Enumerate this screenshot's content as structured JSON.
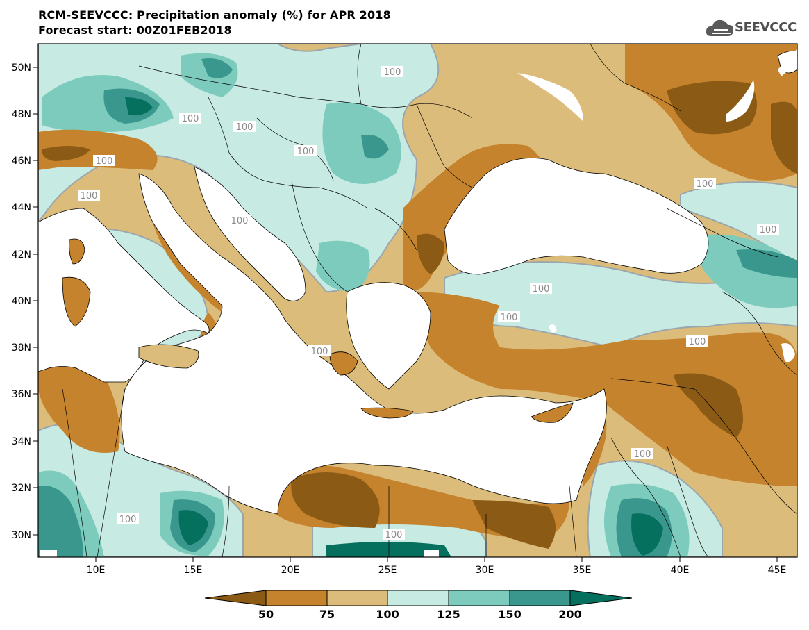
{
  "title": {
    "line1": "RCM-SEEVCCC: Precipitation anomaly (%) for APR 2018",
    "line2": "Forecast start: 00Z01FEB2018"
  },
  "logo": {
    "text": "SEEVCCC",
    "icon": "cloud-icon"
  },
  "map": {
    "region": "Mediterranean / Black Sea",
    "x_ticks": [
      "10E",
      "15E",
      "20E",
      "25E",
      "30E",
      "35E",
      "40E",
      "45E"
    ],
    "y_ticks": [
      "50N",
      "48N",
      "46N",
      "44N",
      "42N",
      "40N",
      "38N",
      "36N",
      "34N",
      "32N",
      "30N"
    ],
    "contour_labels": [
      "100",
      "100",
      "100",
      "100",
      "100",
      "100",
      "100",
      "100",
      "100",
      "100",
      "100",
      "100",
      "100",
      "100",
      "100",
      "100"
    ]
  },
  "colorbar": {
    "labels": [
      "50",
      "75",
      "100",
      "125",
      "150",
      "200"
    ],
    "colors": [
      "#8b5a14",
      "#c4832c",
      "#dcbc7a",
      "#c7ebe3",
      "#7ccbbd",
      "#3a978d",
      "#06705f"
    ]
  }
}
